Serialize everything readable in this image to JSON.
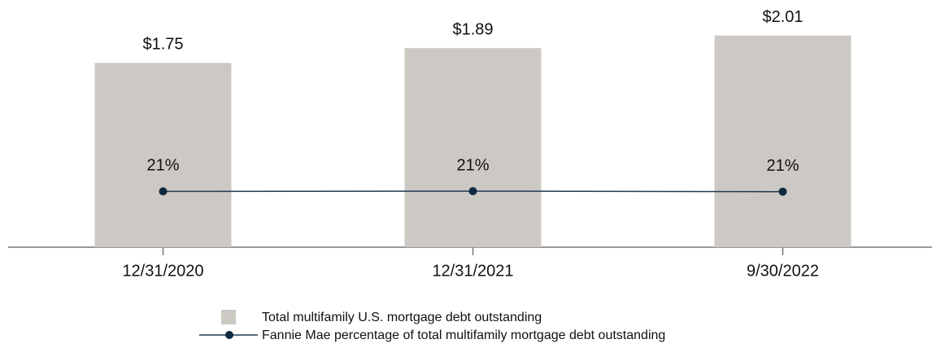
{
  "chart_data": {
    "type": "bar",
    "categories": [
      "12/31/2020",
      "12/31/2021",
      "9/30/2022"
    ],
    "series": [
      {
        "name": "Total multifamily U.S. mortgage debt outstanding",
        "type": "bar",
        "color": "#ccc8c3",
        "values": [
          1.75,
          1.89,
          2.01
        ],
        "value_labels": [
          "$1.75",
          "$1.89",
          "$2.01"
        ]
      },
      {
        "name": "Fannie Mae percentage of total multifamily mortgage debt outstanding",
        "type": "line",
        "axis": "y2",
        "color": "#1f3b54",
        "values": [
          21.0,
          21.1,
          20.9
        ],
        "value_labels": [
          "21%",
          "21%",
          "21%"
        ]
      }
    ],
    "ylim": [
      0,
      2.27
    ],
    "y2lim": [
      0,
      90
    ],
    "legend": "bottom"
  }
}
